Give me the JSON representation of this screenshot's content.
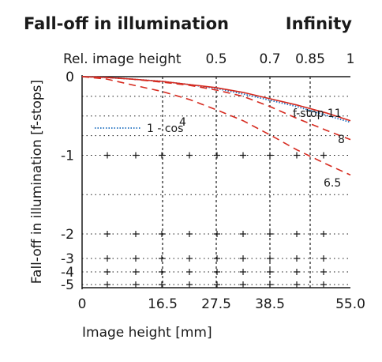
{
  "header": {
    "title": "Fall-off in illumination",
    "condition": "Infinity"
  },
  "chart_data": {
    "type": "line",
    "title": "Fall-off in illumination",
    "subtitle": "Infinity",
    "xlabel": "Image height [mm]",
    "ylabel": "Fall-off in illumination [f-stops]",
    "top_axis_label": "Rel. image height",
    "xlim": [
      0,
      55.0
    ],
    "ylim": [
      -5,
      0
    ],
    "y_scale": "vignetting (compressed below -2)",
    "x_ticks": [
      0,
      16.5,
      27.5,
      38.5,
      55.0
    ],
    "x_tick_labels": [
      "0",
      "16.5",
      "27.5",
      "38.5",
      "55.0"
    ],
    "top_ticks": [
      0.5,
      0.7,
      0.85,
      1
    ],
    "top_tick_labels": [
      "0.5",
      "0.7",
      "0.85",
      "1"
    ],
    "y_ticks": [
      0,
      -1,
      -2,
      -3,
      -4,
      -5
    ],
    "y_tick_labels": [
      "0",
      "-1",
      "-2",
      "-3",
      "-4",
      "-5"
    ],
    "grid": true,
    "series": [
      {
        "name": "1 - cos⁴",
        "style": "dotted",
        "color": "#1f6fc0",
        "x": [
          0,
          5,
          10,
          16.5,
          22,
          27.5,
          33,
          38.5,
          44,
          50,
          55
        ],
        "y": [
          0,
          -0.01,
          -0.03,
          -0.06,
          -0.1,
          -0.15,
          -0.22,
          -0.3,
          -0.38,
          -0.49,
          -0.58
        ]
      },
      {
        "name": "f-stop 11",
        "style": "solid",
        "color": "#d62a1f",
        "x": [
          0,
          5,
          10,
          16.5,
          22,
          27.5,
          33,
          38.5,
          44,
          50,
          55
        ],
        "y": [
          0,
          -0.01,
          -0.03,
          -0.06,
          -0.1,
          -0.14,
          -0.2,
          -0.28,
          -0.36,
          -0.46,
          -0.56
        ]
      },
      {
        "name": "8",
        "style": "dashed",
        "color": "#d62a1f",
        "x": [
          0,
          5,
          10,
          16.5,
          22,
          27.5,
          33,
          38.5,
          44,
          50,
          55
        ],
        "y": [
          0,
          -0.01,
          -0.03,
          -0.07,
          -0.11,
          -0.17,
          -0.25,
          -0.38,
          -0.53,
          -0.68,
          -0.8
        ]
      },
      {
        "name": "6.5",
        "style": "dashed",
        "color": "#d62a1f",
        "x": [
          0,
          5,
          10,
          16.5,
          22,
          27.5,
          33,
          38.5,
          44,
          50,
          55
        ],
        "y": [
          0,
          -0.03,
          -0.1,
          -0.19,
          -0.29,
          -0.42,
          -0.56,
          -0.74,
          -0.93,
          -1.11,
          -1.25
        ]
      }
    ],
    "curve_labels": [
      "f-stop 11",
      "8",
      "6.5"
    ],
    "legend_text": "1 - cos",
    "legend_superscript": "4",
    "colors": {
      "text": "#1a1a1a",
      "solid_curves": "#d62a1f",
      "cos4_curve": "#1f6fc0"
    }
  }
}
